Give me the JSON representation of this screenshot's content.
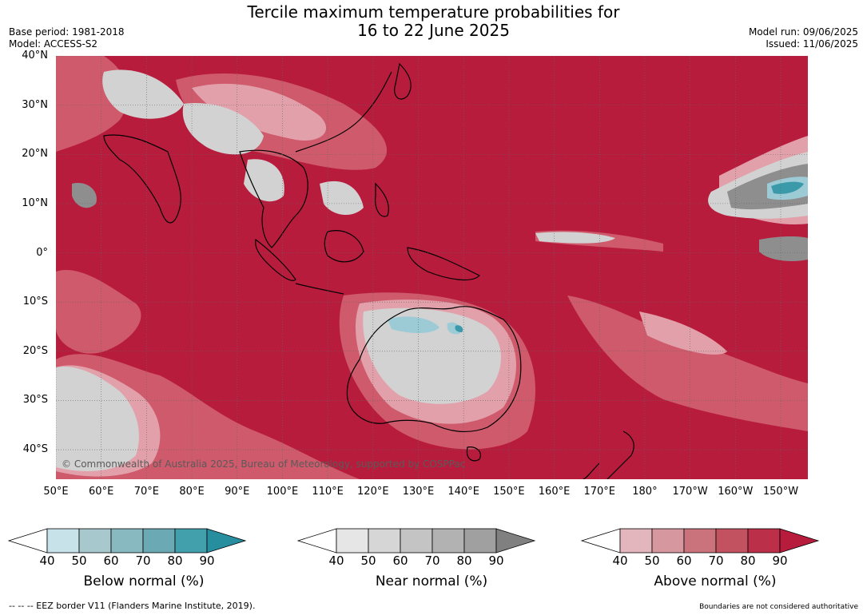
{
  "header": {
    "title_line1": "Tercile maximum temperature probabilities for",
    "title_line2": "16 to 22 June 2025",
    "base_period": "Base period: 1981-2018",
    "model": "Model: ACCESS-S2",
    "model_run": "Model run: 09/06/2025",
    "issued": "Issued: 11/06/2025"
  },
  "map": {
    "lat_labels": [
      "40°N",
      "30°N",
      "20°N",
      "10°N",
      "0°",
      "10°S",
      "20°S",
      "30°S",
      "40°S"
    ],
    "lat_values": [
      40,
      30,
      20,
      10,
      0,
      -10,
      -20,
      -30,
      -40
    ],
    "lon_labels": [
      "50°E",
      "60°E",
      "70°E",
      "80°E",
      "90°E",
      "100°E",
      "110°E",
      "120°E",
      "130°E",
      "140°E",
      "150°E",
      "160°E",
      "170°E",
      "180°",
      "170°W",
      "160°W",
      "150°W"
    ],
    "lon_values": [
      50,
      60,
      70,
      80,
      90,
      100,
      110,
      120,
      130,
      140,
      150,
      160,
      170,
      180,
      190,
      200,
      210
    ],
    "extent": {
      "lon_min": 50,
      "lon_max": 216,
      "lat_min": -46,
      "lat_max": 40
    },
    "copyright": "© Commonwealth of Australia 2025, Bureau of Meteorology, supported by COSPPac",
    "colors": {
      "above_90": "#b81c3c",
      "above_70": "#d0596b",
      "above_50": "#e2a0aa",
      "near": "#d0d0d0",
      "near_dark": "#8a8a8a",
      "below": "#9ccbd5",
      "below_dark": "#3a9aaa",
      "land_outline": "#000000"
    }
  },
  "legend": {
    "ticks": [
      "40",
      "50",
      "60",
      "70",
      "80",
      "90"
    ],
    "below": {
      "title": "Below normal (%)",
      "colors": [
        "#c8e2e9",
        "#a7c8cd",
        "#88b8c0",
        "#6baab5",
        "#42a0ad",
        "#278ea0"
      ]
    },
    "near": {
      "title": "Near normal (%)",
      "colors": [
        "#e6e6e6",
        "#d6d6d6",
        "#c4c4c4",
        "#b2b2b2",
        "#a0a0a0",
        "#808080"
      ]
    },
    "above": {
      "title": "Above normal (%)",
      "colors": [
        "#e2b6bc",
        "#d6979f",
        "#cb737d",
        "#c2525f",
        "#bb3048",
        "#b81c3c"
      ]
    }
  },
  "footer": {
    "eez_note": "--  --  -- EEZ border V11 (Flanders Marine Institute, 2019).",
    "boundary_note": "Boundaries are not considered authoritative"
  }
}
